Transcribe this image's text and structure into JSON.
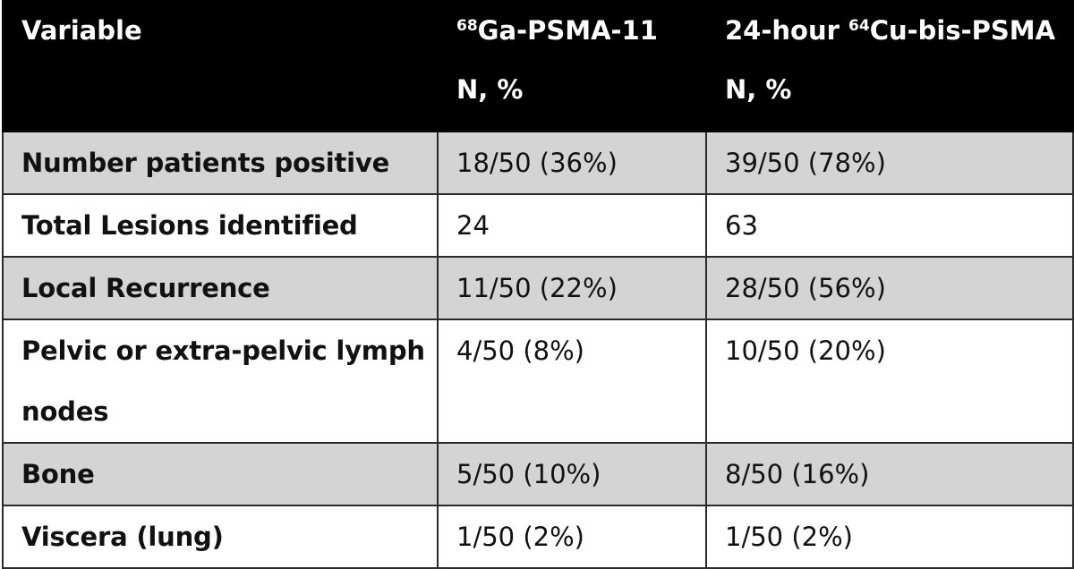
{
  "table": {
    "header": {
      "col1_label": "Variable",
      "col2_sup": "68",
      "col2_label": "Ga-PSMA-11",
      "col2_unit": "N, %",
      "col3_prefix": "24-hour ",
      "col3_sup": "64",
      "col3_label": "Cu-bis-PSMA",
      "col3_unit": "N, %"
    },
    "rows": [
      {
        "variable": "Number patients positive",
        "ga": "18/50 (36%)",
        "cu": "39/50 (78%)"
      },
      {
        "variable": "Total Lesions identified",
        "ga": "24",
        "cu": "63"
      },
      {
        "variable": "Local Recurrence",
        "ga": "11/50 (22%)",
        "cu": "28/50 (56%)"
      },
      {
        "variable": "Pelvic or extra-pelvic lymph nodes",
        "ga": "4/50 (8%)",
        "cu": "10/50 (20%)"
      },
      {
        "variable": "Bone",
        "ga": "5/50 (10%)",
        "cu": "8/50 (16%)"
      },
      {
        "variable": "Viscera (lung)",
        "ga": "1/50 (2%)",
        "cu": "1/50 (2%)"
      }
    ]
  }
}
